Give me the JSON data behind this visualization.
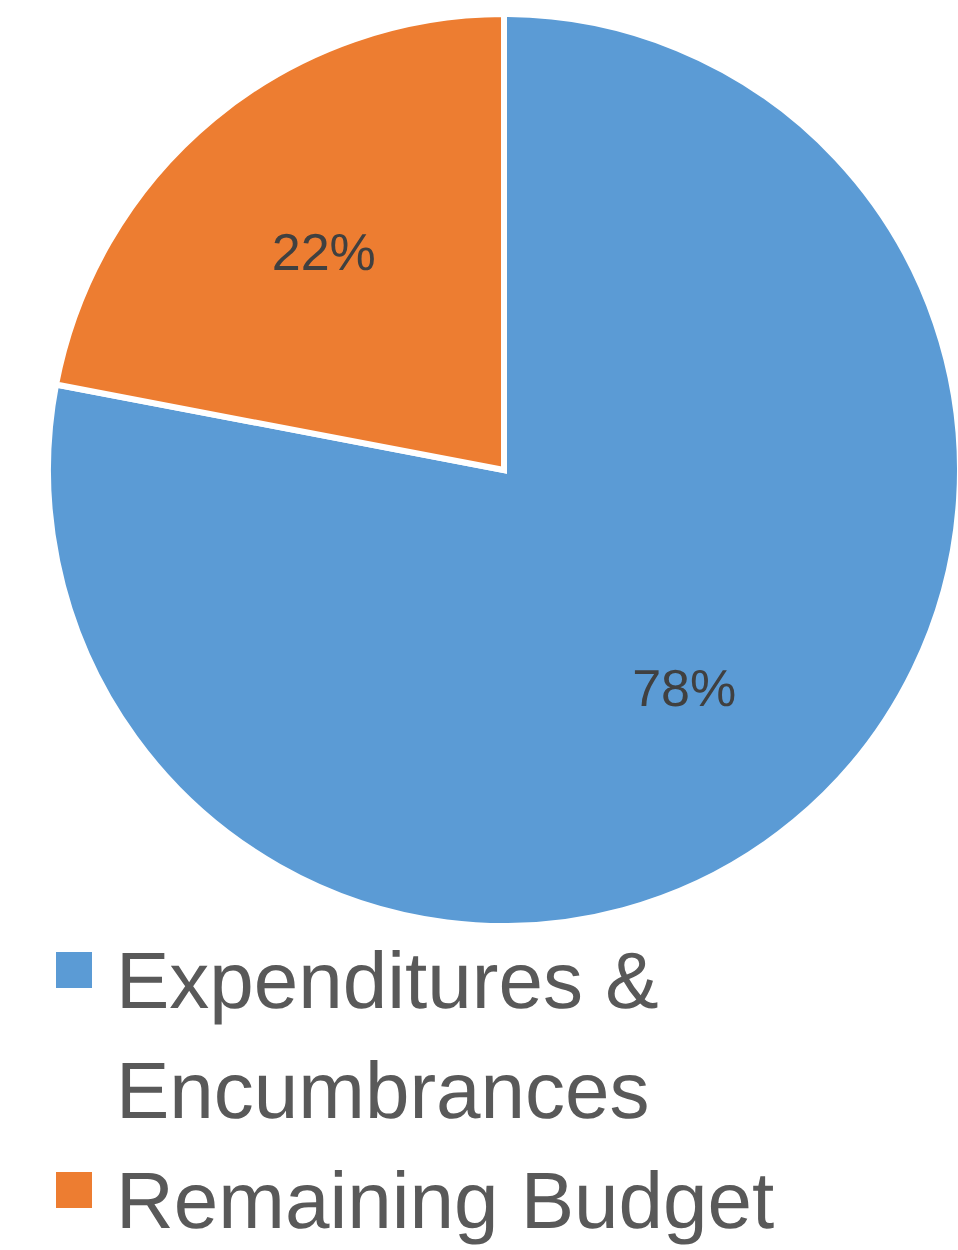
{
  "chart_data": {
    "type": "pie",
    "categories": [
      "Expenditures & Encumbrances",
      "Remaining Budget"
    ],
    "values": [
      78,
      22
    ],
    "colors": [
      "#5b9bd5",
      "#ed7d31"
    ],
    "value_labels": [
      "78%",
      "22%"
    ],
    "legend": "bottom"
  }
}
